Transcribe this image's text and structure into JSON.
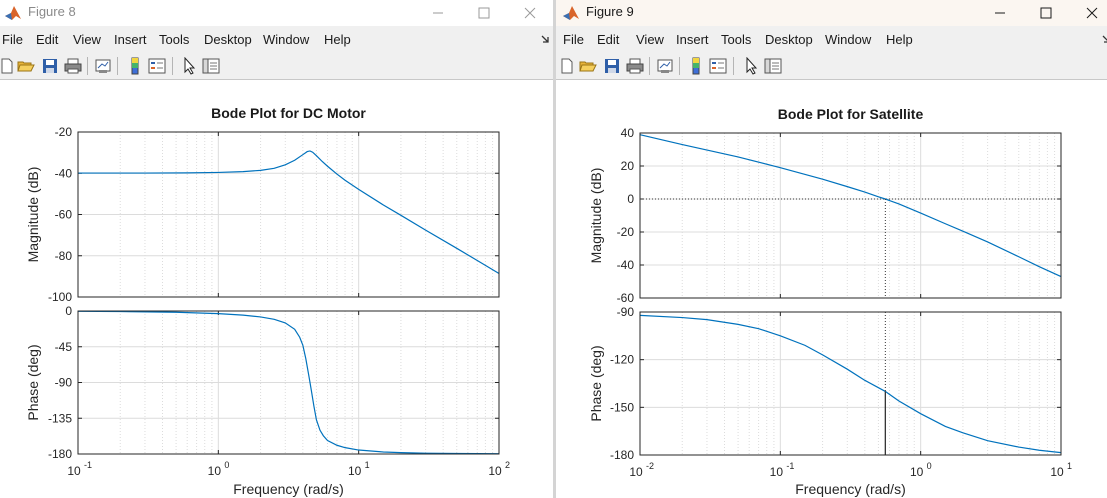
{
  "colors": {
    "line": "#0072bd",
    "grid": "#dcdcdc",
    "axis": "#262626",
    "matlab_orange": "#d9642a"
  },
  "menu": [
    "File",
    "Edit",
    "View",
    "Insert",
    "Tools",
    "Desktop",
    "Window",
    "Help"
  ],
  "toolbar_icons": [
    "new-figure-icon",
    "open-file-icon",
    "save-icon",
    "print-icon",
    "link-plot-icon",
    "colorbar-icon",
    "legend-icon",
    "edit-plot-pointer-icon",
    "property-inspector-icon"
  ],
  "figure8": {
    "window_title": "Figure 8",
    "chart_data": {
      "type": "line",
      "title": "Bode Plot for DC Motor",
      "xlabel": "Frequency  (rad/s)",
      "xscale": "log",
      "xlim": [
        0.1,
        100
      ],
      "x_ticks": [
        {
          "base": "10",
          "exp": "-1"
        },
        {
          "base": "10",
          "exp": "0"
        },
        {
          "base": "10",
          "exp": "1"
        },
        {
          "base": "10",
          "exp": "2"
        }
      ],
      "grid": true,
      "magnitude": {
        "ylabel": "Magnitude (dB)",
        "ylim": [
          -100,
          -20
        ],
        "yticks": [
          "-20",
          "-40",
          "-60",
          "-80",
          "-100"
        ],
        "x": [
          0.1,
          0.3,
          0.6,
          1,
          1.5,
          2,
          2.5,
          3,
          3.5,
          4,
          4.3,
          4.5,
          4.7,
          5,
          5.5,
          6,
          7,
          8,
          10,
          15,
          20,
          30,
          50,
          70,
          100
        ],
        "y": [
          -39.9,
          -39.9,
          -39.8,
          -39.6,
          -39.2,
          -38.6,
          -37.6,
          -35.9,
          -33.7,
          -31.0,
          -29.5,
          -29.2,
          -29.8,
          -31.5,
          -34.3,
          -36.6,
          -40.4,
          -43.4,
          -47.8,
          -55.4,
          -60.4,
          -67.6,
          -76.4,
          -82.3,
          -88.6
        ]
      },
      "phase": {
        "ylabel": "Phase (deg)",
        "ylim": [
          -180,
          0
        ],
        "yticks": [
          "0",
          "-45",
          "-90",
          "-135",
          "-180"
        ],
        "x": [
          0.1,
          0.2,
          0.5,
          1,
          1.5,
          2,
          2.5,
          3,
          3.5,
          3.8,
          4,
          4.2,
          4.4,
          4.5,
          4.6,
          4.8,
          5,
          5.3,
          5.6,
          6,
          7,
          8,
          10,
          15,
          20,
          30,
          50,
          100
        ],
        "y": [
          -0.3,
          -0.7,
          -1.6,
          -3.3,
          -5.2,
          -7.5,
          -10.5,
          -15,
          -23,
          -33,
          -43,
          -60,
          -80,
          -90,
          -100,
          -120,
          -137,
          -150,
          -157,
          -163,
          -169,
          -172,
          -175,
          -177.5,
          -178.3,
          -179,
          -179.4,
          -179.7
        ]
      }
    }
  },
  "figure9": {
    "window_title": "Figure 9",
    "chart_data": {
      "type": "line",
      "title": "Bode Plot for Satellite",
      "xlabel": "Frequency  (rad/s)",
      "xscale": "log",
      "xlim": [
        0.01,
        10
      ],
      "x_ticks": [
        {
          "base": "10",
          "exp": "-2"
        },
        {
          "base": "10",
          "exp": "-1"
        },
        {
          "base": "10",
          "exp": "0"
        },
        {
          "base": "10",
          "exp": "1"
        }
      ],
      "grid": true,
      "crossover_frequency": 0.56,
      "crossover_phase": -140,
      "magnitude": {
        "ylabel": "Magnitude (dB)",
        "ylim": [
          -60,
          40
        ],
        "yticks": [
          "40",
          "20",
          "0",
          "-20",
          "-40",
          "-60"
        ],
        "x": [
          0.01,
          0.02,
          0.05,
          0.1,
          0.2,
          0.3,
          0.4,
          0.5,
          0.56,
          0.7,
          1,
          1.5,
          2,
          3,
          5,
          7,
          10
        ],
        "y": [
          39,
          33,
          25.5,
          19,
          12,
          7.5,
          4.2,
          1.3,
          0,
          -3,
          -8.5,
          -15,
          -19.5,
          -26,
          -35,
          -41,
          -47
        ]
      },
      "phase": {
        "ylabel": "Phase (deg)",
        "ylim": [
          -180,
          -90
        ],
        "yticks": [
          "-90",
          "-120",
          "-150",
          "-180"
        ],
        "x": [
          0.01,
          0.02,
          0.03,
          0.05,
          0.07,
          0.1,
          0.15,
          0.2,
          0.3,
          0.4,
          0.56,
          0.7,
          1,
          1.5,
          2,
          3,
          5,
          7,
          10
        ],
        "y": [
          -92.1,
          -93.5,
          -94.8,
          -97.8,
          -100.5,
          -105,
          -111,
          -117,
          -126,
          -133,
          -140,
          -146,
          -154,
          -162,
          -166,
          -171,
          -175,
          -177,
          -178.5
        ]
      }
    }
  }
}
